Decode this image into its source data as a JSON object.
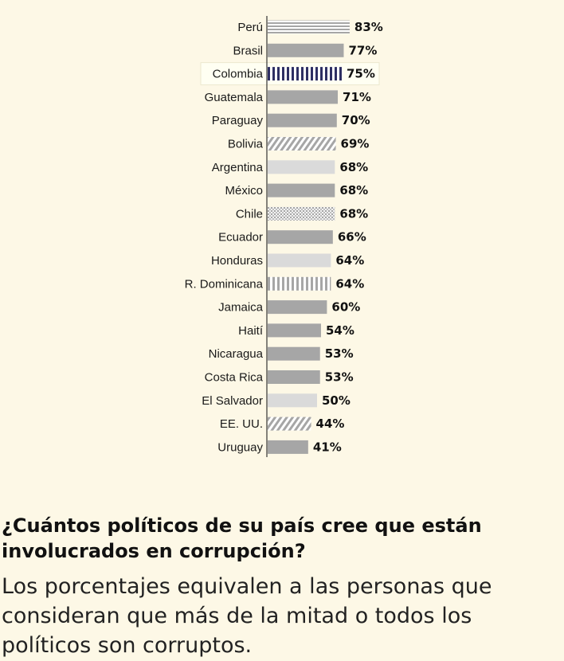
{
  "chart_data": {
    "type": "bar",
    "orientation": "horizontal",
    "categories": [
      "Perú",
      "Brasil",
      "Colombia",
      "Guatemala",
      "Paraguay",
      "Bolivia",
      "Argentina",
      "México",
      "Chile",
      "Ecuador",
      "Honduras",
      "R. Dominicana",
      "Jamaica",
      "Haití",
      "Nicaragua",
      "Costa Rica",
      "El Salvador",
      "EE. UU.",
      "Uruguay"
    ],
    "values": [
      83,
      77,
      75,
      71,
      70,
      69,
      68,
      68,
      68,
      66,
      64,
      64,
      60,
      54,
      53,
      53,
      50,
      44,
      41
    ],
    "value_labels": [
      "83%",
      "77%",
      "75%",
      "71%",
      "70%",
      "69%",
      "68%",
      "68%",
      "68%",
      "66%",
      "64%",
      "64%",
      "60%",
      "54%",
      "53%",
      "53%",
      "50%",
      "44%",
      "41%"
    ],
    "bar_styles": [
      "hstripe",
      "solid",
      "vstripe-navy",
      "solid",
      "solid",
      "diagonal",
      "light",
      "solid",
      "dots",
      "solid",
      "light",
      "vstripe-grey",
      "solid",
      "solid",
      "solid",
      "solid",
      "light",
      "diagonal",
      "solid"
    ],
    "highlighted_category": "Colombia",
    "xlim": [
      0,
      100
    ],
    "grid": false,
    "legend": "none",
    "colors": {
      "bar": "#a6a6a6",
      "bar_light": "#dadada",
      "highlight_stripe": "#2e2f63",
      "highlight_background": "#fffff2",
      "axis": "#333333",
      "background": "#fdf8e6"
    }
  },
  "text": {
    "question": "¿Cuántos políticos de su país cree que están involucrados en corrupción?",
    "subtitle": "Los porcentajes equivalen a las personas que consideran que más de la mitad o todos los políticos son corruptos."
  }
}
